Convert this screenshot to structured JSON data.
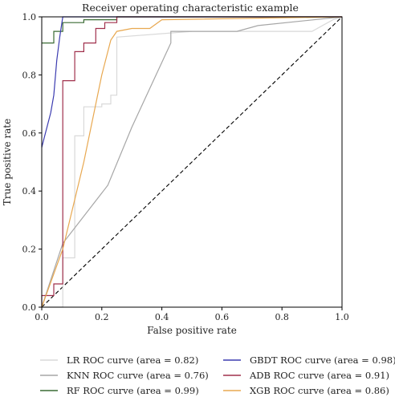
{
  "chart_data": {
    "type": "line",
    "title": "Receiver operating characteristic example",
    "xlabel": "False positive rate",
    "ylabel": "True positive rate",
    "xlim": [
      0.0,
      1.0
    ],
    "ylim": [
      0.0,
      1.0
    ],
    "xticks": [
      "0.0",
      "0.2",
      "0.4",
      "0.6",
      "0.8",
      "1.0"
    ],
    "yticks": [
      "0.0",
      "0.2",
      "0.4",
      "0.6",
      "0.8",
      "1.0"
    ],
    "grid": false,
    "legend_placement": "below",
    "series": [
      {
        "name": "LR ROC curve (area = 0.82)",
        "color": "#d9d9d9",
        "points": [
          [
            0,
            0
          ],
          [
            0.07,
            0
          ],
          [
            0.07,
            0.17
          ],
          [
            0.11,
            0.17
          ],
          [
            0.11,
            0.59
          ],
          [
            0.14,
            0.59
          ],
          [
            0.14,
            0.69
          ],
          [
            0.2,
            0.69
          ],
          [
            0.2,
            0.7
          ],
          [
            0.23,
            0.7
          ],
          [
            0.23,
            0.73
          ],
          [
            0.25,
            0.73
          ],
          [
            0.25,
            0.93
          ],
          [
            0.5,
            0.95
          ],
          [
            0.9,
            0.95
          ],
          [
            0.97,
            0.99
          ],
          [
            1.0,
            1.0
          ]
        ]
      },
      {
        "name": "KNN ROC curve (area = 0.76)",
        "color": "#a6a6a6",
        "points": [
          [
            0,
            0
          ],
          [
            0.07,
            0.22
          ],
          [
            0.22,
            0.42
          ],
          [
            0.3,
            0.62
          ],
          [
            0.43,
            0.91
          ],
          [
            0.43,
            0.95
          ],
          [
            0.65,
            0.95
          ],
          [
            0.72,
            0.97
          ],
          [
            1.0,
            1.0
          ]
        ]
      },
      {
        "name": "RF ROC curve (area = 0.99)",
        "color": "#3a6b34",
        "points": [
          [
            0,
            0.91
          ],
          [
            0.04,
            0.91
          ],
          [
            0.04,
            0.95
          ],
          [
            0.07,
            0.95
          ],
          [
            0.07,
            0.98
          ],
          [
            0.14,
            0.98
          ],
          [
            0.14,
            0.99
          ],
          [
            0.25,
            0.99
          ],
          [
            0.25,
            1.0
          ],
          [
            1.0,
            1.0
          ]
        ]
      },
      {
        "name": "GBDT ROC curve (area = 0.98)",
        "color": "#3b3bb0",
        "points": [
          [
            0,
            0.55
          ],
          [
            0.01,
            0.59
          ],
          [
            0.03,
            0.67
          ],
          [
            0.04,
            0.73
          ],
          [
            0.05,
            0.85
          ],
          [
            0.06,
            0.93
          ],
          [
            0.07,
            1.0
          ],
          [
            1.0,
            1.0
          ]
        ]
      },
      {
        "name": "ADB ROC curve (area = 0.91)",
        "color": "#a0304c",
        "points": [
          [
            0,
            0
          ],
          [
            0,
            0.04
          ],
          [
            0.04,
            0.04
          ],
          [
            0.04,
            0.08
          ],
          [
            0.07,
            0.08
          ],
          [
            0.07,
            0.78
          ],
          [
            0.11,
            0.78
          ],
          [
            0.11,
            0.88
          ],
          [
            0.14,
            0.88
          ],
          [
            0.14,
            0.91
          ],
          [
            0.18,
            0.91
          ],
          [
            0.18,
            0.96
          ],
          [
            0.21,
            0.96
          ],
          [
            0.21,
            0.98
          ],
          [
            0.25,
            0.98
          ],
          [
            0.25,
            1.0
          ],
          [
            1.0,
            1.0
          ]
        ]
      },
      {
        "name": "XGB ROC curve (area = 0.86)",
        "color": "#e8a850",
        "points": [
          [
            0,
            0
          ],
          [
            0.07,
            0.2
          ],
          [
            0.14,
            0.5
          ],
          [
            0.2,
            0.8
          ],
          [
            0.23,
            0.92
          ],
          [
            0.25,
            0.95
          ],
          [
            0.3,
            0.96
          ],
          [
            0.36,
            0.96
          ],
          [
            0.4,
            0.99
          ],
          [
            1.0,
            1.0
          ]
        ]
      }
    ],
    "reference_line": {
      "points": [
        [
          0,
          0
        ],
        [
          1,
          1
        ]
      ],
      "style": "dashed",
      "color": "#000000"
    }
  }
}
